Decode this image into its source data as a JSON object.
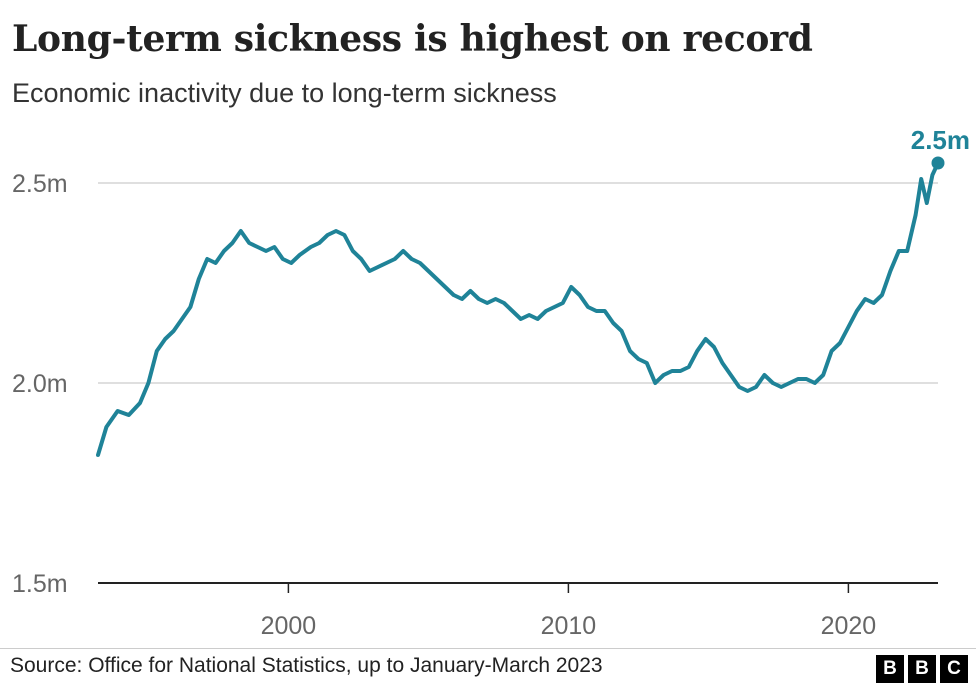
{
  "title": "Long-term sickness is highest on record",
  "subtitle": "Economic inactivity due to long-term sickness",
  "source": "Source: Office for National Statistics, up to January-March 2023",
  "logo": [
    "B",
    "B",
    "C"
  ],
  "colors": {
    "line": "#1f8398",
    "grid": "#cccccc",
    "axis": "#222222",
    "text": "#666666"
  },
  "chart_data": {
    "type": "line",
    "title": "Long-term sickness is highest on record",
    "subtitle": "Economic inactivity due to long-term sickness",
    "xlim": [
      1993.2,
      2023.2
    ],
    "ylim": [
      1.5,
      2.6
    ],
    "y_ticks": [
      {
        "value": 2.5,
        "label": "2.5m"
      },
      {
        "value": 2.0,
        "label": "2.0m"
      },
      {
        "value": 1.5,
        "label": "1.5m"
      }
    ],
    "x_ticks": [
      {
        "value": 2000,
        "label": "2000"
      },
      {
        "value": 2010,
        "label": "2010"
      },
      {
        "value": 2020,
        "label": "2020"
      }
    ],
    "grid": true,
    "end_label": "2.5m",
    "series": [
      {
        "x": [
          1993.2,
          1993.5,
          1993.9,
          1994.3,
          1994.7,
          1995.0,
          1995.3,
          1995.6,
          1995.9,
          1996.2,
          1996.5,
          1996.8,
          1997.1,
          1997.4,
          1997.7,
          1998.0,
          1998.3,
          1998.6,
          1998.9,
          1999.2,
          1999.5,
          1999.8,
          2000.1,
          2000.4,
          2000.8,
          2001.1,
          2001.4,
          2001.7,
          2002.0,
          2002.3,
          2002.6,
          2002.9,
          2003.2,
          2003.5,
          2003.8,
          2004.1,
          2004.4,
          2004.7,
          2005.0,
          2005.3,
          2005.6,
          2005.9,
          2006.2,
          2006.5,
          2006.8,
          2007.1,
          2007.4,
          2007.7,
          2008.0,
          2008.3,
          2008.6,
          2008.9,
          2009.2,
          2009.5,
          2009.8,
          2010.1,
          2010.4,
          2010.7,
          2011.0,
          2011.3,
          2011.6,
          2011.9,
          2012.2,
          2012.5,
          2012.8,
          2013.1,
          2013.4,
          2013.7,
          2014.0,
          2014.3,
          2014.6,
          2014.9,
          2015.2,
          2015.5,
          2015.8,
          2016.1,
          2016.4,
          2016.7,
          2017.0,
          2017.3,
          2017.6,
          2017.9,
          2018.2,
          2018.5,
          2018.8,
          2019.1,
          2019.4,
          2019.7,
          2020.0,
          2020.3,
          2020.6,
          2020.9,
          2021.2,
          2021.5,
          2021.8,
          2022.1,
          2022.4,
          2022.6,
          2022.8,
          2023.0,
          2023.2
        ],
        "values": [
          1.82,
          1.89,
          1.93,
          1.92,
          1.95,
          2.0,
          2.08,
          2.11,
          2.13,
          2.16,
          2.19,
          2.26,
          2.31,
          2.3,
          2.33,
          2.35,
          2.38,
          2.35,
          2.34,
          2.33,
          2.34,
          2.31,
          2.3,
          2.32,
          2.34,
          2.35,
          2.37,
          2.38,
          2.37,
          2.33,
          2.31,
          2.28,
          2.29,
          2.3,
          2.31,
          2.33,
          2.31,
          2.3,
          2.28,
          2.26,
          2.24,
          2.22,
          2.21,
          2.23,
          2.21,
          2.2,
          2.21,
          2.2,
          2.18,
          2.16,
          2.17,
          2.16,
          2.18,
          2.19,
          2.2,
          2.24,
          2.22,
          2.19,
          2.18,
          2.18,
          2.15,
          2.13,
          2.08,
          2.06,
          2.05,
          2.0,
          2.02,
          2.03,
          2.03,
          2.04,
          2.08,
          2.11,
          2.09,
          2.05,
          2.02,
          1.99,
          1.98,
          1.99,
          2.02,
          2.0,
          1.99,
          2.0,
          2.01,
          2.01,
          2.0,
          2.02,
          2.08,
          2.1,
          2.14,
          2.18,
          2.21,
          2.2,
          2.22,
          2.28,
          2.33,
          2.33,
          2.42,
          2.51,
          2.45,
          2.52,
          2.55
        ]
      }
    ]
  }
}
